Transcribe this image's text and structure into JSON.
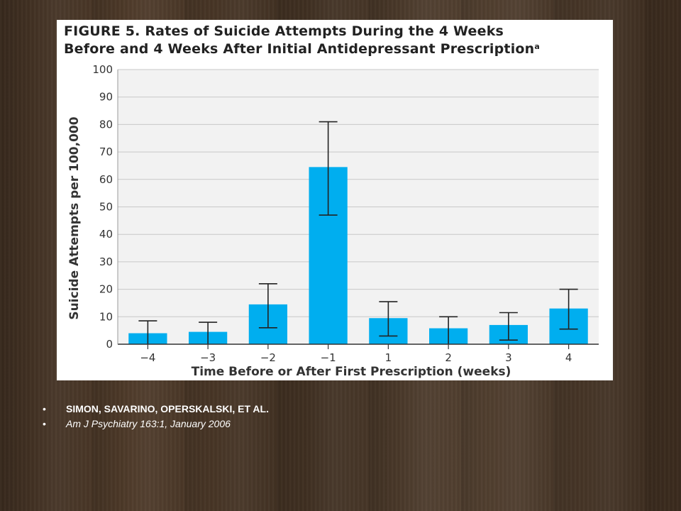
{
  "figure": {
    "title_line1": "FIGURE 5. Rates of Suicide Attempts During the 4 Weeks",
    "title_line2": "Before and 4 Weeks After Initial Antidepressant Prescription",
    "title_superscript": "a"
  },
  "chart_data": {
    "type": "bar",
    "xlabel": "Time Before or After First Prescription (weeks)",
    "ylabel": "Suicide Attempts per 100,000",
    "categories": [
      "−4",
      "−3",
      "−2",
      "−1",
      "1",
      "2",
      "3",
      "4"
    ],
    "values": [
      4,
      4.5,
      14.5,
      64.5,
      9.5,
      5.8,
      7,
      13
    ],
    "error_low": [
      0,
      0,
      6,
      47,
      3,
      0,
      1.5,
      5.5
    ],
    "error_high": [
      8.5,
      8,
      22,
      81,
      15.5,
      10,
      11.5,
      20
    ],
    "ylim": [
      0,
      100
    ],
    "yticks": [
      0,
      10,
      20,
      30,
      40,
      50,
      60,
      70,
      80,
      90,
      100
    ],
    "grid": true,
    "bar_color": "#00aeef",
    "plot_background": "#f2f2f2"
  },
  "citation": {
    "authors": "SIMON, SAVARINO, OPERSKALSKI, ET AL.",
    "journal": "Am J Psychiatry 163:1, January 2006",
    "bullet": "•"
  }
}
